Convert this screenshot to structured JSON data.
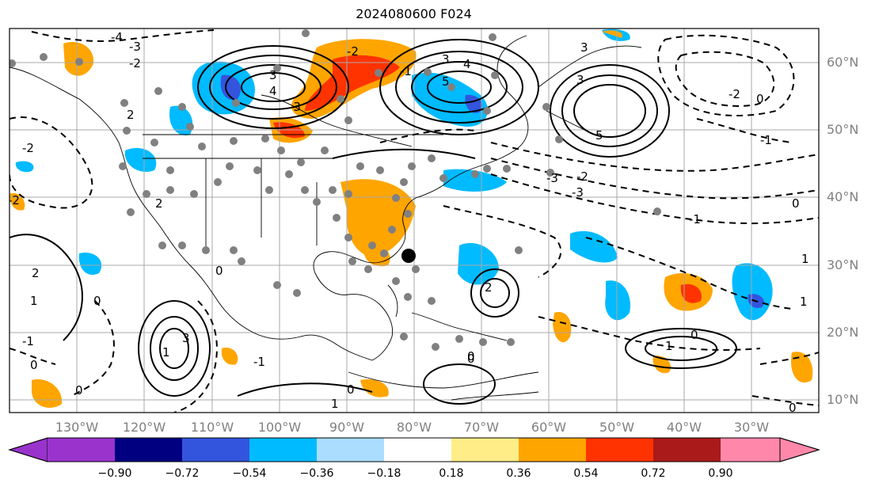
{
  "title": "2024080600 F024",
  "map": {
    "lat_labels": [
      "60°N",
      "50°N",
      "40°N",
      "30°N",
      "20°N",
      "10°N"
    ],
    "lon_labels": [
      "130°W",
      "120°W",
      "110°W",
      "100°W",
      "90°W",
      "80°W",
      "70°W",
      "60°W",
      "50°W",
      "40°W",
      "30°W"
    ]
  },
  "colorbar": {
    "colors": [
      "#9933cc",
      "#000080",
      "#3355dd",
      "#00bbff",
      "#aaddff",
      "#ffffff",
      "#ffee88",
      "#ffa500",
      "#ff3300",
      "#aa1a1a",
      "#ff88aa"
    ],
    "low_extend_color": "#9933cc",
    "high_extend_color": "#ff88aa",
    "tick_labels": [
      "−0.90",
      "−0.72",
      "−0.54",
      "−0.36",
      "−0.18",
      "0.18",
      "0.36",
      "0.54",
      "0.72",
      "0.90"
    ]
  },
  "contour_labels": [
    "-4",
    "-3",
    "-2",
    "-1",
    "0",
    "1",
    "2",
    "3",
    "4",
    "5"
  ],
  "marker_colors": {
    "stations": "#808080",
    "highlight": "#000000"
  }
}
